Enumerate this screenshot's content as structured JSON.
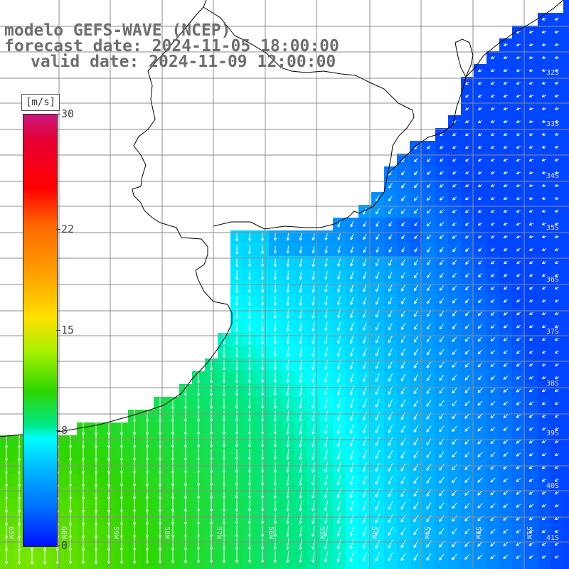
{
  "title": {
    "line1": "modelo GEFS-WAVE (NCEP)",
    "line2": "forecast date: 2024-11-05 18:00:00",
    "line3": "valid date: 2024-11-09 12:00:00"
  },
  "colorbar": {
    "units": "[m/s]",
    "min": 0,
    "max": 30,
    "ticks": [
      {
        "label": "30",
        "value": 30
      },
      {
        "label": "22",
        "value": 22
      },
      {
        "label": "15",
        "value": 15
      },
      {
        "label": "8",
        "value": 8
      },
      {
        "label": "0",
        "value": 0
      }
    ]
  },
  "map": {
    "variable": "wind speed and direction",
    "lat_labels": [
      "32S",
      "33S",
      "34S",
      "35S",
      "36S",
      "37S",
      "38S",
      "39S",
      "40S",
      "41S"
    ],
    "lon_labels": [
      "65W",
      "60W",
      "59W",
      "58W",
      "57W",
      "56W",
      "55W",
      "54W",
      "53W",
      "52W",
      "51W"
    ],
    "colors": {
      "land": "#ffffff",
      "coast": "#000000",
      "grid": "#8c8c8c",
      "arrows": "#ffffff",
      "labels": "#dddddd"
    }
  }
}
